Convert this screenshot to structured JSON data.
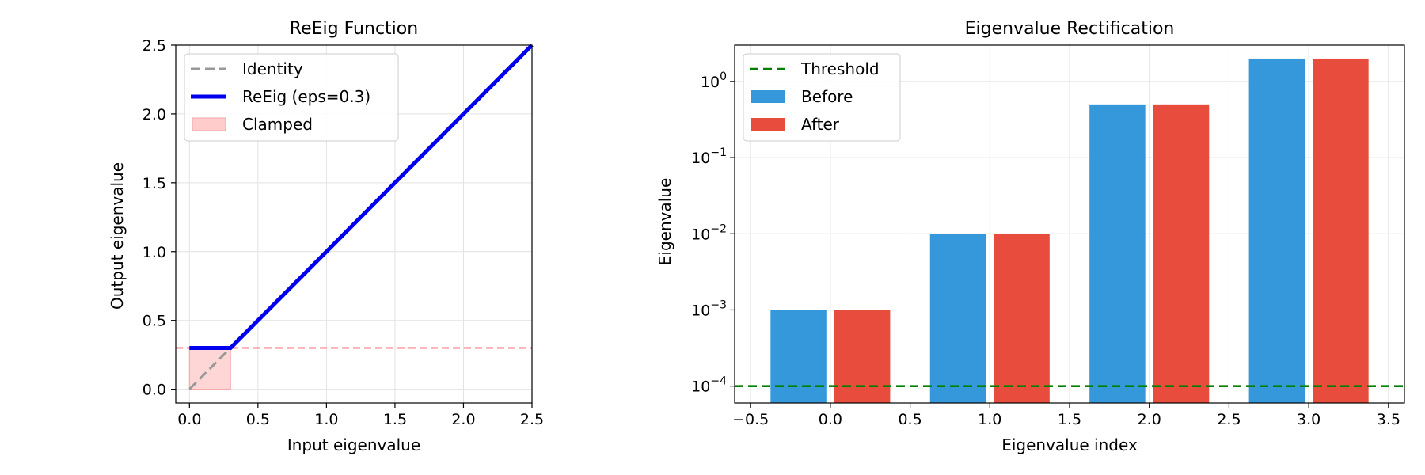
{
  "chart_data": [
    {
      "type": "line",
      "title": "ReEig Function",
      "xlabel": "Input eigenvalue",
      "ylabel": "Output eigenvalue",
      "xlim": [
        -0.1,
        2.5
      ],
      "ylim": [
        -0.1,
        2.5
      ],
      "xticks": [
        0.0,
        0.5,
        1.0,
        1.5,
        2.0,
        2.5
      ],
      "xtick_labels": [
        "0.0",
        "0.5",
        "1.0",
        "1.5",
        "2.0",
        "2.5"
      ],
      "yticks": [
        0.0,
        0.5,
        1.0,
        1.5,
        2.0,
        2.5
      ],
      "ytick_labels": [
        "0.0",
        "0.5",
        "1.0",
        "1.5",
        "2.0",
        "2.5"
      ],
      "grid": true,
      "legend_position": "top-left",
      "series": [
        {
          "name": "Identity",
          "style": "dashed",
          "color": "#999999",
          "x": [
            0.0,
            0.3
          ],
          "y": [
            0.0,
            0.3
          ]
        },
        {
          "name": "ReEig (eps=0.3)",
          "style": "solid",
          "color": "#0000ee",
          "x": [
            0.0,
            0.3,
            2.5
          ],
          "y": [
            0.3,
            0.3,
            2.5
          ]
        }
      ],
      "regions": [
        {
          "name": "Clamped",
          "color": "#ffcccc",
          "x": [
            0.0,
            0.3
          ],
          "y": [
            0.0,
            0.3
          ]
        }
      ],
      "reference_lines": [
        {
          "orientation": "horizontal",
          "value": 0.3,
          "color": "#ff7f8a",
          "style": "dashed"
        }
      ]
    },
    {
      "type": "bar",
      "title": "Eigenvalue Rectification",
      "xlabel": "Eigenvalue index",
      "ylabel": "Eigenvalue",
      "yscale": "log",
      "xlim": [
        -0.6,
        3.6
      ],
      "ylim": [
        6e-05,
        3.0
      ],
      "xticks": [
        -0.5,
        0.0,
        0.5,
        1.0,
        1.5,
        2.0,
        2.5,
        3.0,
        3.5
      ],
      "xtick_labels": [
        "−0.5",
        "0.0",
        "0.5",
        "1.0",
        "1.5",
        "2.0",
        "2.5",
        "3.0",
        "3.5"
      ],
      "yticks": [
        0.0001,
        0.001,
        0.01,
        0.1,
        1
      ],
      "ytick_exponents": [
        "−4",
        "−3",
        "−2",
        "−1",
        "0"
      ],
      "ytick_base": "10",
      "grid": true,
      "legend_position": "top-left",
      "categories": [
        0,
        1,
        2,
        3
      ],
      "bar_width": 0.35,
      "series": [
        {
          "name": "Before",
          "color": "#3498db",
          "offset": -0.2,
          "values": [
            0.001,
            0.01,
            0.5,
            2.0
          ]
        },
        {
          "name": "After",
          "color": "#e74c3c",
          "offset": 0.2,
          "values": [
            0.001,
            0.01,
            0.5,
            2.0
          ]
        }
      ],
      "reference_lines": [
        {
          "name": "Threshold",
          "orientation": "horizontal",
          "value": 0.0001,
          "color": "#008000",
          "style": "dashed"
        }
      ]
    }
  ]
}
